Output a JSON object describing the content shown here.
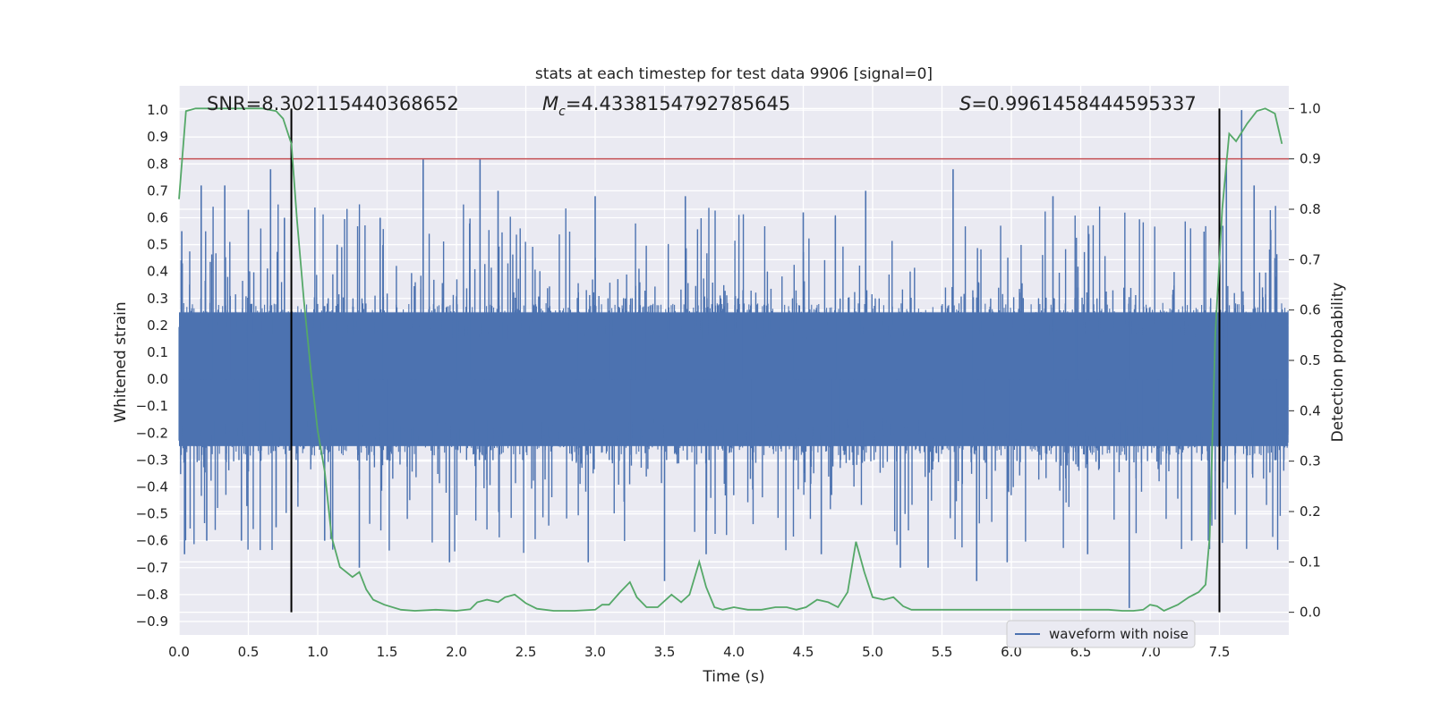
{
  "chart_data": {
    "type": "line",
    "title": "stats at each timestep for test data 9906 [signal=0]",
    "xlabel": "Time (s)",
    "ylabel": "Whitened strain",
    "ylabel_right": "Detection probability",
    "xlim": [
      0.0,
      8.0
    ],
    "ylim": [
      -0.95,
      1.09
    ],
    "ylim_right": [
      -0.045,
      1.045
    ],
    "xticks": [
      "0.0",
      "0.5",
      "1.0",
      "1.5",
      "2.0",
      "2.5",
      "3.0",
      "3.5",
      "4.0",
      "4.5",
      "5.0",
      "5.5",
      "6.0",
      "6.5",
      "7.0",
      "7.5"
    ],
    "yticks": [
      "1.0",
      "0.9",
      "0.8",
      "0.7",
      "0.6",
      "0.5",
      "0.4",
      "0.3",
      "0.2",
      "0.1",
      "0.0",
      "−0.1",
      "−0.2",
      "−0.3",
      "−0.4",
      "−0.5",
      "−0.6",
      "−0.7",
      "−0.8",
      "−0.9"
    ],
    "yticks_right": [
      "1.0",
      "0.9",
      "0.8",
      "0.7",
      "0.6",
      "0.5",
      "0.4",
      "0.3",
      "0.2",
      "0.1",
      "0.0"
    ],
    "grid": true,
    "legend": {
      "position": "lower-right",
      "entries": [
        "waveform with noise"
      ]
    },
    "annotations": {
      "snr": "SNR=8.302115440368652",
      "mc_symbol": "M",
      "mc_sub": "c",
      "mc_value": "=4.4338154792785645",
      "s_symbol": "S",
      "s_value": "=0.9961458444595337"
    },
    "threshold_right": 0.9,
    "vertical_lines_x": [
      0.81,
      7.5
    ],
    "waveform": {
      "name": "waveform with noise",
      "typical_envelope": 0.27,
      "peaks": [
        {
          "x": 0.02,
          "y": 0.55
        },
        {
          "x": 0.04,
          "y": -0.65
        },
        {
          "x": 0.16,
          "y": 0.72
        },
        {
          "x": 0.2,
          "y": -0.6
        },
        {
          "x": 0.33,
          "y": 0.72
        },
        {
          "x": 0.45,
          "y": -0.6
        },
        {
          "x": 0.5,
          "y": 0.63
        },
        {
          "x": 0.66,
          "y": 0.78
        },
        {
          "x": 0.7,
          "y": -0.55
        },
        {
          "x": 0.76,
          "y": 0.6
        },
        {
          "x": 1.05,
          "y": -0.6
        },
        {
          "x": 1.14,
          "y": 0.5
        },
        {
          "x": 1.3,
          "y": -0.7
        },
        {
          "x": 1.45,
          "y": 0.6
        },
        {
          "x": 1.76,
          "y": 0.82
        },
        {
          "x": 1.95,
          "y": -0.68
        },
        {
          "x": 2.17,
          "y": 0.82
        },
        {
          "x": 2.3,
          "y": 0.7
        },
        {
          "x": 2.95,
          "y": -0.68
        },
        {
          "x": 3.0,
          "y": 0.68
        },
        {
          "x": 3.5,
          "y": -0.75
        },
        {
          "x": 3.65,
          "y": 0.68
        },
        {
          "x": 3.8,
          "y": -0.65
        },
        {
          "x": 4.5,
          "y": 0.62
        },
        {
          "x": 4.63,
          "y": -0.65
        },
        {
          "x": 4.95,
          "y": 0.7
        },
        {
          "x": 5.2,
          "y": -0.7
        },
        {
          "x": 5.4,
          "y": -0.7
        },
        {
          "x": 5.58,
          "y": 0.78
        },
        {
          "x": 5.75,
          "y": -0.75
        },
        {
          "x": 5.97,
          "y": -0.68
        },
        {
          "x": 6.3,
          "y": 0.68
        },
        {
          "x": 6.55,
          "y": -0.65
        },
        {
          "x": 6.85,
          "y": -0.85
        },
        {
          "x": 7.3,
          "y": -0.6
        },
        {
          "x": 7.42,
          "y": -0.6
        },
        {
          "x": 7.55,
          "y": 0.82
        },
        {
          "x": 7.66,
          "y": 1.0
        },
        {
          "x": 7.75,
          "y": 0.72
        },
        {
          "x": 7.9,
          "y": 0.45
        }
      ]
    },
    "probability": {
      "x": [
        0.0,
        0.05,
        0.12,
        0.2,
        0.3,
        0.4,
        0.5,
        0.6,
        0.7,
        0.75,
        0.81,
        0.85,
        0.9,
        0.95,
        1.0,
        1.05,
        1.1,
        1.16,
        1.25,
        1.3,
        1.35,
        1.4,
        1.48,
        1.6,
        1.7,
        1.85,
        2.0,
        2.1,
        2.15,
        2.22,
        2.3,
        2.35,
        2.42,
        2.5,
        2.58,
        2.7,
        2.85,
        3.0,
        3.05,
        3.1,
        3.18,
        3.25,
        3.3,
        3.37,
        3.45,
        3.55,
        3.62,
        3.68,
        3.75,
        3.8,
        3.86,
        3.92,
        4.0,
        4.1,
        4.2,
        4.3,
        4.38,
        4.45,
        4.52,
        4.6,
        4.68,
        4.75,
        4.82,
        4.88,
        4.94,
        5.0,
        5.08,
        5.15,
        5.22,
        5.28,
        5.35,
        5.45,
        5.6,
        5.75,
        5.9,
        6.1,
        6.3,
        6.5,
        6.7,
        6.8,
        6.88,
        6.95,
        7.0,
        7.05,
        7.1,
        7.2,
        7.28,
        7.35,
        7.4,
        7.43,
        7.47,
        7.52,
        7.57,
        7.62,
        7.7,
        7.77,
        7.83,
        7.9,
        7.95
      ],
      "y": [
        0.82,
        0.995,
        1.0,
        1.0,
        1.0,
        1.0,
        1.0,
        1.0,
        0.995,
        0.98,
        0.93,
        0.78,
        0.62,
        0.48,
        0.36,
        0.28,
        0.15,
        0.09,
        0.07,
        0.08,
        0.045,
        0.025,
        0.015,
        0.005,
        0.003,
        0.005,
        0.003,
        0.006,
        0.02,
        0.025,
        0.02,
        0.03,
        0.035,
        0.018,
        0.007,
        0.003,
        0.003,
        0.005,
        0.015,
        0.015,
        0.04,
        0.06,
        0.03,
        0.01,
        0.01,
        0.035,
        0.02,
        0.035,
        0.1,
        0.05,
        0.01,
        0.005,
        0.01,
        0.005,
        0.005,
        0.01,
        0.01,
        0.005,
        0.01,
        0.025,
        0.02,
        0.01,
        0.04,
        0.14,
        0.08,
        0.03,
        0.025,
        0.03,
        0.012,
        0.005,
        0.005,
        0.005,
        0.005,
        0.005,
        0.005,
        0.005,
        0.005,
        0.005,
        0.005,
        0.003,
        0.003,
        0.005,
        0.015,
        0.012,
        0.003,
        0.015,
        0.03,
        0.04,
        0.055,
        0.15,
        0.55,
        0.8,
        0.95,
        0.935,
        0.97,
        0.995,
        1.0,
        0.99,
        0.93
      ]
    },
    "colors": {
      "background": "#eaeaf2",
      "grid": "#ffffff",
      "waveform": "#4c72b0",
      "probability": "#55a868",
      "threshold": "#c44e52",
      "vertical_line": "#000000"
    }
  }
}
